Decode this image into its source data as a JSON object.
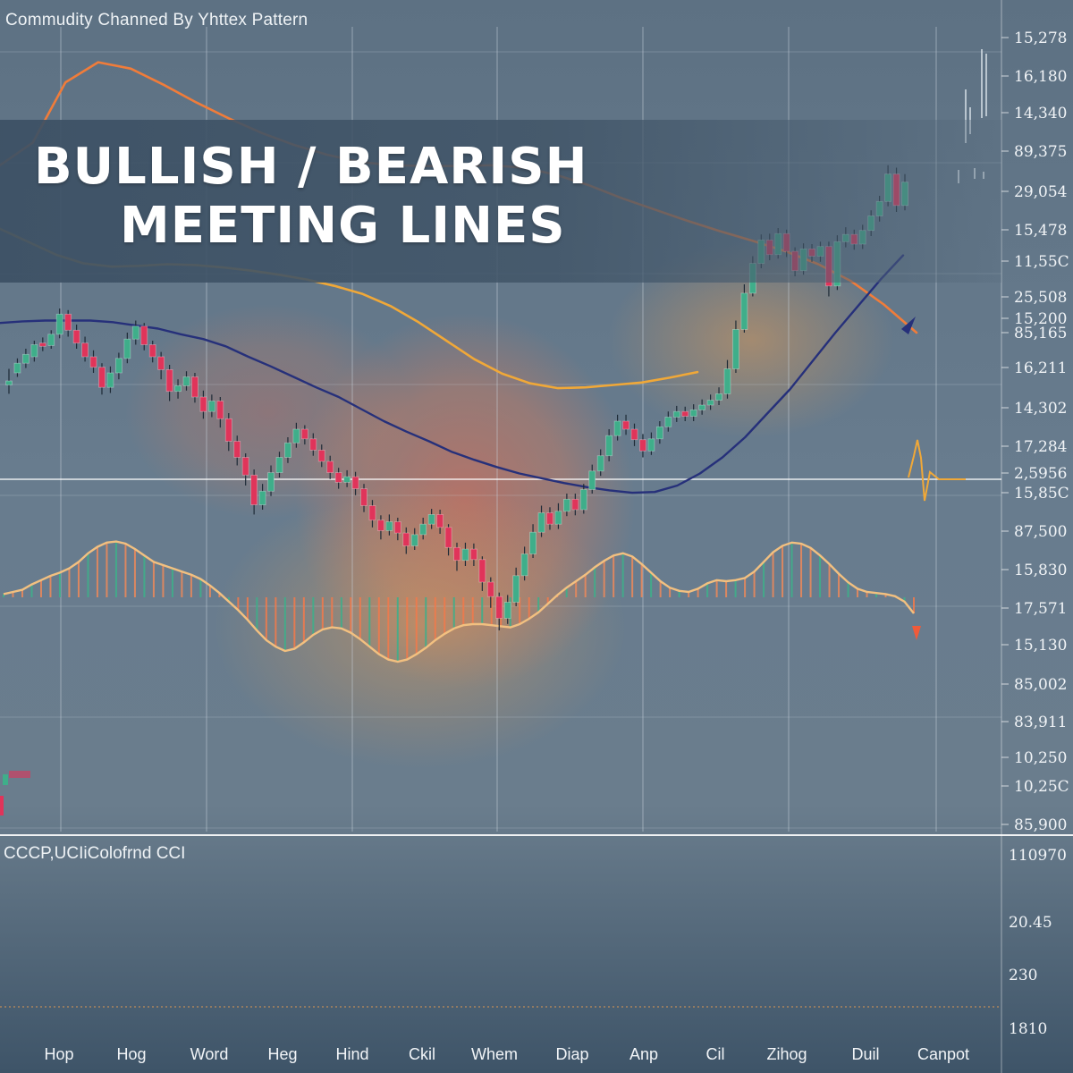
{
  "header": {
    "caption": "Commudity Channed By Yhttex Pattern",
    "title_line_1": "BULLISH / BEARISH",
    "title_line_2": "MEETING LINES"
  },
  "colors": {
    "bull": "#3fae8a",
    "bear": "#e0345a",
    "ma_fast": "#26307a",
    "ma_mid": "#f0a838",
    "ma_slow": "#f07c3a",
    "grid": "#c9d3dc"
  },
  "chart_data": [
    {
      "type": "candlestick",
      "title": "BULLISH / BEARISH MEETING LINES",
      "y_tick_labels": [
        "15,278",
        "16,180",
        "14,340",
        "89,375",
        "29,054",
        "15,478",
        "11,55C",
        "25,508",
        "15,200",
        "85,165",
        "16,211",
        "14,302",
        "17,284",
        "2,5956",
        "15,85C",
        "87,500",
        "15,830",
        "17,571",
        "15,130",
        "85,002",
        "83,911",
        "10,250",
        "10,25C",
        "85,900"
      ],
      "x_tick_labels": [
        "Hop",
        "Hog",
        "Word",
        "Heg",
        "Hind",
        "Ckil",
        "Whem",
        "Diap",
        "Anp",
        "Cil",
        "Zihog",
        "Duil",
        "Canpot"
      ],
      "grid": true,
      "y_range": [
        0,
        100
      ],
      "candles": [
        [
          55.5,
          56,
          54.4,
          57.5
        ],
        [
          57,
          58.2,
          56.5,
          58.8
        ],
        [
          58.2,
          59.3,
          57.6,
          60
        ],
        [
          59,
          60.5,
          58.4,
          61
        ],
        [
          60.7,
          60.3,
          59.7,
          61.4
        ],
        [
          60.4,
          61.8,
          60,
          62.3
        ],
        [
          61.8,
          64.3,
          61.3,
          65
        ],
        [
          64.3,
          62.3,
          61.5,
          64.8
        ],
        [
          62.3,
          60.7,
          60,
          63
        ],
        [
          60.7,
          59,
          58.4,
          61.5
        ],
        [
          59,
          57.7,
          57,
          59.8
        ],
        [
          57.7,
          55.2,
          54.3,
          58.2
        ],
        [
          55.2,
          57,
          54.5,
          57.8
        ],
        [
          57,
          58.8,
          56.2,
          59.5
        ],
        [
          58.8,
          61.2,
          58.2,
          62
        ],
        [
          61.2,
          62.8,
          60.5,
          63.5
        ],
        [
          62.8,
          60.5,
          59.8,
          63.2
        ],
        [
          60.5,
          59,
          58.3,
          61
        ],
        [
          59,
          57.4,
          56.2,
          59.6
        ],
        [
          57.4,
          54.7,
          53.5,
          58
        ],
        [
          54.7,
          55.4,
          53.8,
          56.2
        ],
        [
          55.4,
          56.5,
          54.8,
          57.2
        ],
        [
          56.5,
          54,
          53.3,
          57
        ],
        [
          54,
          52.2,
          51.3,
          54.8
        ],
        [
          52.2,
          53.5,
          51.5,
          54.3
        ],
        [
          53.5,
          51.3,
          50.2,
          54
        ],
        [
          51.3,
          48.5,
          47.3,
          52
        ],
        [
          48.5,
          46.5,
          45.5,
          49.2
        ],
        [
          46.5,
          44.3,
          43,
          47
        ],
        [
          44.3,
          40.6,
          39.4,
          45
        ],
        [
          40.6,
          42.3,
          40,
          43.2
        ],
        [
          42.3,
          44.6,
          41.7,
          45.5
        ],
        [
          44.6,
          46.5,
          44,
          47.2
        ],
        [
          46.5,
          48.3,
          45.8,
          49
        ],
        [
          48.3,
          50,
          47.7,
          50.8
        ],
        [
          50,
          48.8,
          48.1,
          50.5
        ],
        [
          48.8,
          47.4,
          46.7,
          49.5
        ],
        [
          47.4,
          46,
          45.3,
          48.1
        ],
        [
          46,
          44.6,
          43.8,
          46.7
        ],
        [
          44.6,
          43.4,
          42.6,
          45.2
        ],
        [
          43.4,
          44.1,
          42.8,
          44.9
        ],
        [
          44.1,
          42.6,
          41.8,
          44.7
        ],
        [
          42.6,
          40.5,
          39.7,
          43.2
        ],
        [
          40.5,
          38.7,
          37.8,
          41.2
        ],
        [
          38.7,
          37.4,
          36.3,
          39.3
        ],
        [
          37.4,
          38.5,
          36.8,
          39.4
        ],
        [
          38.5,
          37.1,
          36.2,
          39
        ],
        [
          37.1,
          35.5,
          34.5,
          37.8
        ],
        [
          35.5,
          36.9,
          35,
          37.7
        ],
        [
          36.9,
          38.2,
          36.3,
          39
        ],
        [
          38.2,
          39.4,
          37.6,
          40.1
        ],
        [
          39.4,
          37.8,
          37,
          40
        ],
        [
          37.8,
          35.3,
          34.3,
          38.2
        ],
        [
          35.3,
          33.7,
          32.4,
          35.9
        ],
        [
          33.7,
          35.1,
          33,
          35.9
        ],
        [
          35.1,
          33.8,
          33,
          35.8
        ],
        [
          33.8,
          31,
          29.9,
          34.2
        ],
        [
          31,
          29.2,
          27.8,
          31.6
        ],
        [
          29.2,
          26.5,
          25,
          29.7
        ],
        [
          26.5,
          28.5,
          25.8,
          29.4
        ],
        [
          28.5,
          31.8,
          28,
          32.8
        ],
        [
          31.8,
          34.5,
          31.2,
          35.4
        ],
        [
          34.5,
          37.2,
          34,
          38.2
        ],
        [
          37.2,
          39.6,
          36.6,
          40.5
        ],
        [
          39.6,
          38.2,
          37.5,
          40.3
        ],
        [
          38.2,
          39.8,
          37.6,
          40.8
        ],
        [
          39.8,
          41.3,
          39.2,
          42
        ],
        [
          41.3,
          40,
          39.3,
          42
        ],
        [
          40,
          42.5,
          39.5,
          43.2
        ],
        [
          42.5,
          44.8,
          42,
          45.6
        ],
        [
          44.8,
          46.7,
          44.2,
          47.5
        ],
        [
          46.7,
          49.2,
          46,
          50
        ],
        [
          49.2,
          51,
          48.6,
          51.8
        ],
        [
          51,
          50,
          49.3,
          51.8
        ],
        [
          50,
          48.7,
          47.9,
          50.7
        ],
        [
          48.7,
          47.3,
          46.5,
          49.4
        ],
        [
          47.3,
          48.8,
          46.8,
          49.6
        ],
        [
          48.8,
          50.3,
          48.2,
          51
        ],
        [
          50.3,
          51.5,
          49.7,
          52.2
        ],
        [
          51.5,
          52.2,
          50.9,
          52.9
        ],
        [
          52.2,
          51.6,
          51,
          52.8
        ],
        [
          51.6,
          52.4,
          51,
          53.1
        ],
        [
          52.4,
          53,
          51.8,
          53.7
        ],
        [
          53,
          53.6,
          52.4,
          54.3
        ],
        [
          53.6,
          54.4,
          53,
          55.2
        ],
        [
          54.4,
          57.5,
          53.8,
          58.6
        ],
        [
          57.5,
          62.4,
          57,
          63.5
        ],
        [
          62.4,
          66.9,
          62,
          68
        ],
        [
          66.9,
          70.6,
          66.5,
          71.5
        ],
        [
          70.6,
          73.5,
          70,
          74.2
        ],
        [
          73.5,
          71.7,
          71,
          74.3
        ],
        [
          71.7,
          74.3,
          71.2,
          75
        ],
        [
          74.3,
          72.1,
          71.4,
          74.8
        ],
        [
          72.1,
          69.7,
          69,
          72.6
        ],
        [
          69.7,
          72.4,
          69.2,
          73.1
        ],
        [
          72.4,
          71.5,
          70.8,
          73
        ],
        [
          71.5,
          72.7,
          70.8,
          73.3
        ],
        [
          72.7,
          67.8,
          66.5,
          73.3
        ],
        [
          67.8,
          73.3,
          67.3,
          74.1
        ],
        [
          73.3,
          74.2,
          72.6,
          75.1
        ],
        [
          74.2,
          73,
          72.3,
          74.8
        ],
        [
          73,
          74.7,
          72.4,
          75.4
        ],
        [
          74.7,
          76.5,
          74,
          77.2
        ],
        [
          76.5,
          78.3,
          75.8,
          79
        ],
        [
          78.3,
          81.7,
          77.7,
          82.8
        ],
        [
          81.7,
          77.8,
          77,
          82.5
        ],
        [
          77.8,
          80.7,
          77.2,
          81.7
        ]
      ],
      "ma_fast": [
        63.2,
        63.4,
        63.5,
        63.5,
        63.5,
        63.3,
        62.9,
        62.5,
        61.8,
        61.2,
        60.3,
        59,
        57.8,
        56.5,
        55.2,
        54,
        52.5,
        51,
        49.7,
        48.5,
        47.2,
        46.2,
        45.3,
        44.5,
        43.9,
        43.3,
        42.8,
        42.4,
        42.1,
        42.2,
        43,
        44.5,
        46.5,
        49,
        52,
        55,
        58.5,
        62,
        65.3,
        68.6,
        71.6
      ],
      "ma_mid": [
        74.9,
        73.3,
        71.7,
        70.6,
        70.2,
        70.3,
        70.5,
        70.4,
        70.1,
        69.7,
        69.2,
        68.6,
        67.8,
        66.8,
        65.3,
        63.3,
        61,
        58.7,
        56.9,
        55.7,
        55.1,
        55.2,
        55.5,
        55.8,
        56.4,
        57.1
      ],
      "ma_slow": [
        82.8,
        85.6,
        93.1,
        95.6,
        94.8,
        92.8,
        90.6,
        88.6,
        86.8,
        85.3,
        84.1,
        83.2,
        82.8,
        82.7,
        82.7,
        82.8,
        82.5,
        81.6,
        80.3,
        78.7,
        77.3,
        75.9,
        74.6,
        73.4,
        72.1,
        70.5,
        68.4,
        65.5,
        62
      ]
    },
    {
      "type": "bar",
      "title": "CCCP,UCIiColofrnd CCI",
      "y_tick_labels": [
        "110970",
        "20.45",
        "230",
        "1810"
      ],
      "values": [
        0.3,
        0.5,
        0.7,
        1.2,
        1.6,
        2,
        2.3,
        2.7,
        3.3,
        4.1,
        4.7,
        5.1,
        5.2,
        5,
        4.5,
        3.9,
        3.3,
        3,
        2.7,
        2.4,
        2.1,
        1.7,
        1.1,
        0.4,
        -0.4,
        -1.2,
        -2.1,
        -3.1,
        -4,
        -4.6,
        -5,
        -4.8,
        -4.2,
        -3.5,
        -3,
        -2.8,
        -2.9,
        -3.3,
        -3.9,
        -4.6,
        -5.3,
        -5.8,
        -6,
        -5.8,
        -5.3,
        -4.7,
        -4,
        -3.4,
        -2.9,
        -2.6,
        -2.5,
        -2.5,
        -2.6,
        -2.7,
        -2.8,
        -2.5,
        -2,
        -1.4,
        -0.6,
        0.2,
        0.9,
        1.5,
        2.1,
        2.8,
        3.4,
        3.9,
        4.1,
        3.8,
        3.1,
        2.3,
        1.5,
        0.9,
        0.6,
        0.5,
        0.8,
        1.3,
        1.6,
        1.5,
        1.6,
        1.8,
        2.4,
        3.3,
        4.2,
        4.8,
        5.1,
        5,
        4.6,
        3.9,
        3.1,
        2.2,
        1.4,
        0.8,
        0.5,
        0.4,
        0.3,
        0.1,
        -0.4,
        -1.5
      ]
    }
  ]
}
